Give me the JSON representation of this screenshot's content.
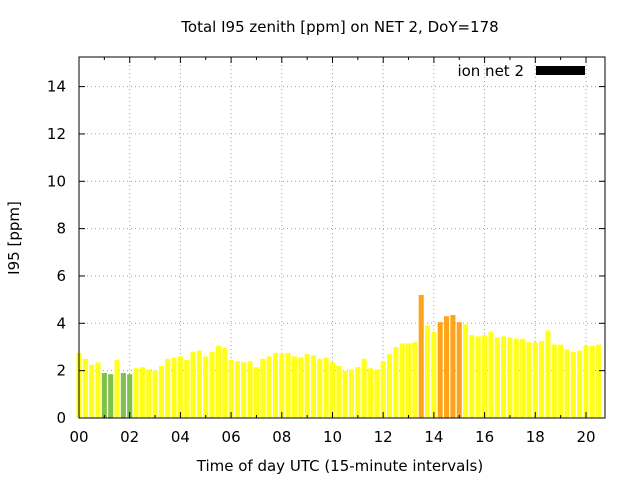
{
  "chart_data": {
    "type": "bar",
    "title": "Total I95 zenith [ppm] on NET 2, DoY=178",
    "xlabel": "Time of day UTC (15-minute intervals)",
    "ylabel": "I95 [ppm]",
    "xlim": [
      0,
      20.75
    ],
    "ylim": [
      0,
      15.25
    ],
    "xticks": [
      {
        "v": 0,
        "label": "00"
      },
      {
        "v": 2,
        "label": "02"
      },
      {
        "v": 4,
        "label": "04"
      },
      {
        "v": 6,
        "label": "06"
      },
      {
        "v": 8,
        "label": "08"
      },
      {
        "v": 10,
        "label": "10"
      },
      {
        "v": 12,
        "label": "12"
      },
      {
        "v": 14,
        "label": "14"
      },
      {
        "v": 16,
        "label": "16"
      },
      {
        "v": 18,
        "label": "18"
      },
      {
        "v": 20,
        "label": "20"
      }
    ],
    "yticks": [
      {
        "v": 0,
        "label": "0"
      },
      {
        "v": 2,
        "label": "2"
      },
      {
        "v": 4,
        "label": "4"
      },
      {
        "v": 6,
        "label": "6"
      },
      {
        "v": 8,
        "label": "8"
      },
      {
        "v": 10,
        "label": "10"
      },
      {
        "v": 12,
        "label": "12"
      },
      {
        "v": 14,
        "label": "14"
      }
    ],
    "grid": true,
    "legend": {
      "label": "ion net 2",
      "color": "#000000",
      "placement": "top-right"
    },
    "colors": {
      "green": "#7ec24b",
      "yellow": "#ffff1a",
      "orange": "#ffa41a"
    },
    "start_hour": 0,
    "interval_hours": 0.25,
    "values": [
      2.75,
      2.5,
      2.25,
      2.35,
      1.9,
      1.85,
      2.45,
      1.9,
      1.85,
      2.1,
      2.15,
      2.05,
      2.0,
      2.2,
      2.5,
      2.55,
      2.6,
      2.45,
      2.8,
      2.85,
      2.6,
      2.8,
      3.05,
      2.95,
      2.45,
      2.4,
      2.35,
      2.4,
      2.15,
      2.5,
      2.6,
      2.75,
      2.7,
      2.75,
      2.6,
      2.55,
      2.7,
      2.65,
      2.5,
      2.55,
      2.35,
      2.2,
      2.0,
      2.05,
      2.15,
      2.5,
      2.1,
      2.05,
      2.4,
      2.7,
      3.0,
      3.15,
      3.15,
      3.2,
      5.2,
      3.9,
      3.65,
      4.05,
      4.3,
      4.35,
      4.05,
      3.95,
      3.5,
      3.45,
      3.5,
      3.65,
      3.4,
      3.45,
      3.4,
      3.35,
      3.35,
      3.2,
      3.2,
      3.25,
      3.7,
      3.1,
      3.1,
      2.9,
      2.8,
      2.85,
      3.05,
      3.05,
      3.1
    ],
    "bar_colors": [
      "yellow",
      "yellow",
      "yellow",
      "yellow",
      "green",
      "green",
      "yellow",
      "green",
      "green",
      "yellow",
      "yellow",
      "yellow",
      "yellow",
      "yellow",
      "yellow",
      "yellow",
      "yellow",
      "yellow",
      "yellow",
      "yellow",
      "yellow",
      "yellow",
      "yellow",
      "yellow",
      "yellow",
      "yellow",
      "yellow",
      "yellow",
      "yellow",
      "yellow",
      "yellow",
      "yellow",
      "yellow",
      "yellow",
      "yellow",
      "yellow",
      "yellow",
      "yellow",
      "yellow",
      "yellow",
      "yellow",
      "yellow",
      "yellow",
      "yellow",
      "yellow",
      "yellow",
      "yellow",
      "yellow",
      "yellow",
      "yellow",
      "yellow",
      "yellow",
      "yellow",
      "yellow",
      "orange",
      "yellow",
      "yellow",
      "orange",
      "orange",
      "orange",
      "orange",
      "yellow",
      "yellow",
      "yellow",
      "yellow",
      "yellow",
      "yellow",
      "yellow",
      "yellow",
      "yellow",
      "yellow",
      "yellow",
      "yellow",
      "yellow",
      "yellow",
      "yellow",
      "yellow",
      "yellow",
      "yellow",
      "yellow",
      "yellow",
      "yellow",
      "yellow"
    ]
  }
}
